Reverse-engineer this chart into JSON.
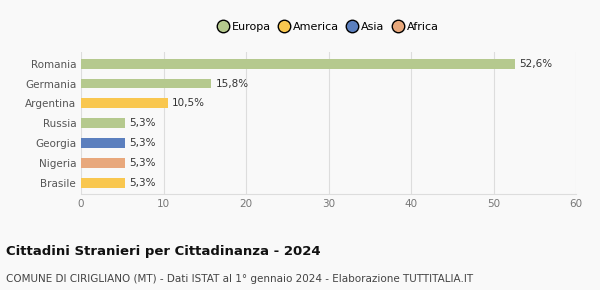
{
  "categories": [
    "Brasile",
    "Nigeria",
    "Georgia",
    "Russia",
    "Argentina",
    "Germania",
    "Romania"
  ],
  "values": [
    5.3,
    5.3,
    5.3,
    5.3,
    10.5,
    15.8,
    52.6
  ],
  "colors": [
    "#f9c74f",
    "#e8a87c",
    "#5b7fbe",
    "#b5c98e",
    "#f9c74f",
    "#b5c98e",
    "#b5c98e"
  ],
  "labels": [
    "5,3%",
    "5,3%",
    "5,3%",
    "5,3%",
    "10,5%",
    "15,8%",
    "52,6%"
  ],
  "continent_colors": {
    "Europa": "#b5c98e",
    "America": "#f9c74f",
    "Asia": "#5b7fbe",
    "Africa": "#e8a87c"
  },
  "xlim": [
    0,
    60
  ],
  "xticks": [
    0,
    10,
    20,
    30,
    40,
    50,
    60
  ],
  "title": "Cittadini Stranieri per Cittadinanza - 2024",
  "subtitle": "COMUNE DI CIRIGLIANO (MT) - Dati ISTAT al 1° gennaio 2024 - Elaborazione TUTTITALIA.IT",
  "title_fontsize": 9.5,
  "subtitle_fontsize": 7.5,
  "label_fontsize": 7.5,
  "tick_fontsize": 7.5,
  "legend_fontsize": 8,
  "bar_height": 0.5,
  "background_color": "#f9f9f9",
  "grid_color": "#dddddd"
}
